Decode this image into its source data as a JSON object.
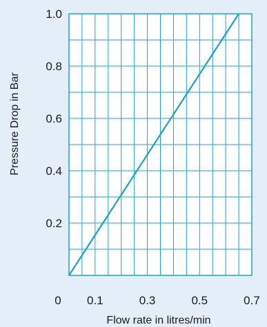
{
  "chart_data": {
    "type": "line",
    "xlabel": "Flow rate in litres/min",
    "ylabel": "Pressure Drop in Bar",
    "xlim": [
      0,
      0.7
    ],
    "ylim": [
      0,
      1.0
    ],
    "x_ticks": [
      0.1,
      0.3,
      0.5,
      0.7
    ],
    "x_tick_labels": [
      "0.1",
      "0.3",
      "0.5",
      "0.7"
    ],
    "y_ticks": [
      0.2,
      0.4,
      0.6,
      0.8,
      1.0
    ],
    "y_tick_labels": [
      "0.2",
      "0.4",
      "0.6",
      "0.8",
      "1.0"
    ],
    "origin_label": "0",
    "grid": true,
    "series": [
      {
        "x": [
          0,
          0.65
        ],
        "y": [
          0,
          1.0
        ],
        "color": "#1aa0d8"
      }
    ],
    "colors": {
      "page_background": "#e3eef9",
      "plot_background": "#ffffff",
      "grid": "#19a3dc",
      "line": "#1aa0d8"
    }
  }
}
